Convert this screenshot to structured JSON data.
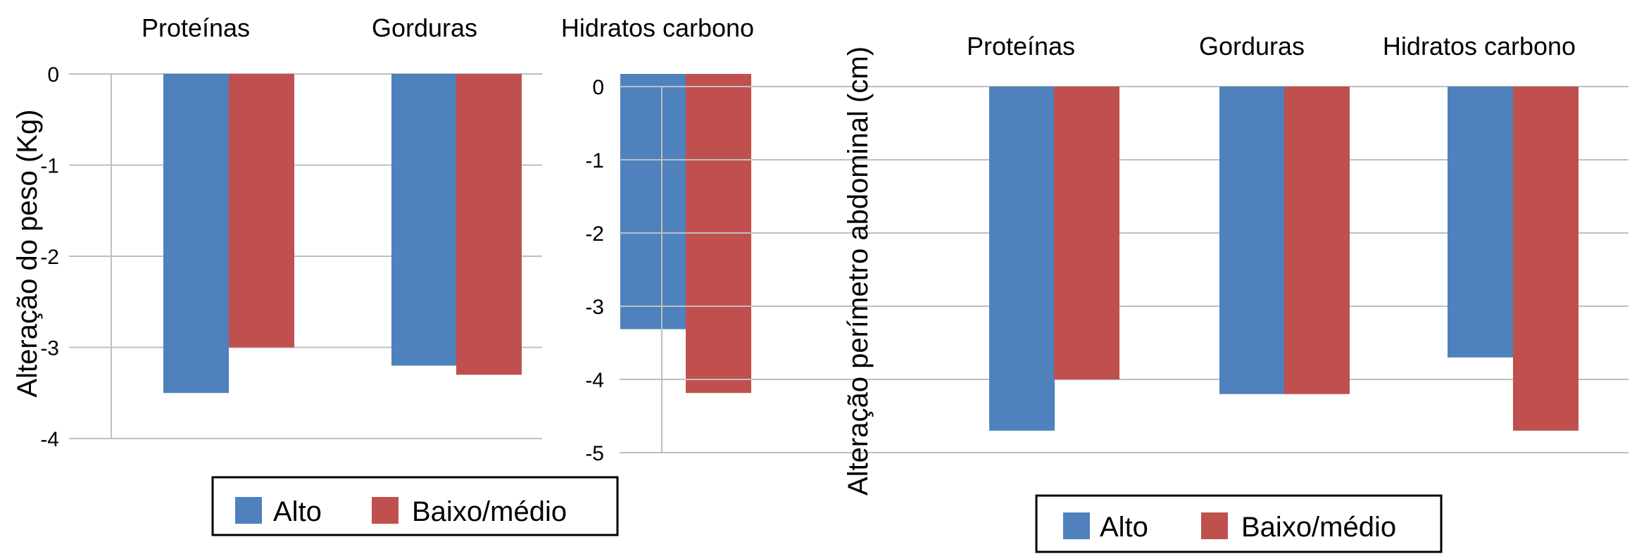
{
  "charts": {
    "weight": {
      "chart_data": {
        "type": "bar",
        "categories": [
          "Proteínas",
          "Gorduras",
          "Hidratos carbono"
        ],
        "series": [
          {
            "name": "Alto",
            "values": [
              -3.5,
              -3.2,
              -2.8
            ]
          },
          {
            "name": "Baixo/médio",
            "values": [
              -3.0,
              -3.3,
              -3.5
            ]
          }
        ],
        "ylabel": "Alteração do peso (Kg)",
        "xlabel": "",
        "ylim": [
          -4,
          0
        ],
        "yticks": [
          0,
          -1,
          -2,
          -3,
          -4
        ],
        "ytick_labels": [
          "0",
          "-1",
          "-2",
          "-3",
          "-4"
        ],
        "grid": true,
        "legend_position": "bottom"
      }
    },
    "abdominal": {
      "chart_data": {
        "type": "bar",
        "categories": [
          "Proteínas",
          "Gorduras",
          "Hidratos carbono"
        ],
        "series": [
          {
            "name": "Alto",
            "values": [
              -4.7,
              -4.2,
              -3.7
            ]
          },
          {
            "name": "Baixo/médio",
            "values": [
              -4.0,
              -4.2,
              -4.7
            ]
          }
        ],
        "ylabel": "Alteração perímetro abdominal (cm)",
        "xlabel": "",
        "ylim": [
          -5,
          0
        ],
        "yticks": [
          0,
          -1,
          -2,
          -3,
          -4,
          -5
        ],
        "ytick_labels": [
          "0",
          "-1",
          "-2",
          "-3",
          "-4",
          "-5"
        ],
        "grid": true,
        "legend_position": "bottom"
      }
    }
  },
  "colors": {
    "Alto": "#4f81bd",
    "Baixo/médio": "#c0504d"
  }
}
